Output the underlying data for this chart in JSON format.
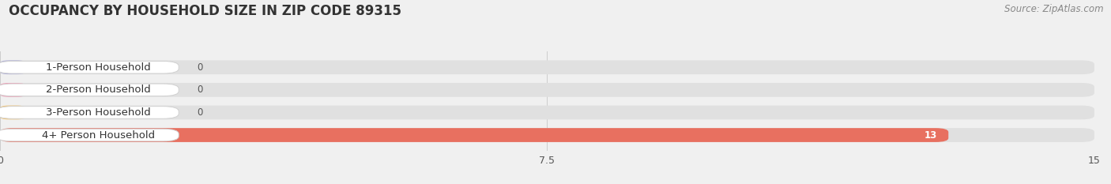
{
  "title": "OCCUPANCY BY HOUSEHOLD SIZE IN ZIP CODE 89315",
  "source": "Source: ZipAtlas.com",
  "categories": [
    "1-Person Household",
    "2-Person Household",
    "3-Person Household",
    "4+ Person Household"
  ],
  "values": [
    0,
    0,
    0,
    13
  ],
  "bar_colors": [
    "#b0b0d8",
    "#f0a0b8",
    "#f5c878",
    "#e87060"
  ],
  "bar_label_colors": [
    "#555555",
    "#555555",
    "#555555",
    "#ffffff"
  ],
  "xlim": [
    0,
    15
  ],
  "xticks": [
    0,
    7.5,
    15
  ],
  "background_color": "#f0f0f0",
  "bar_bg_color": "#e0e0e0",
  "title_fontsize": 12,
  "source_fontsize": 8.5,
  "label_fontsize": 9.5,
  "value_fontsize": 8.5
}
